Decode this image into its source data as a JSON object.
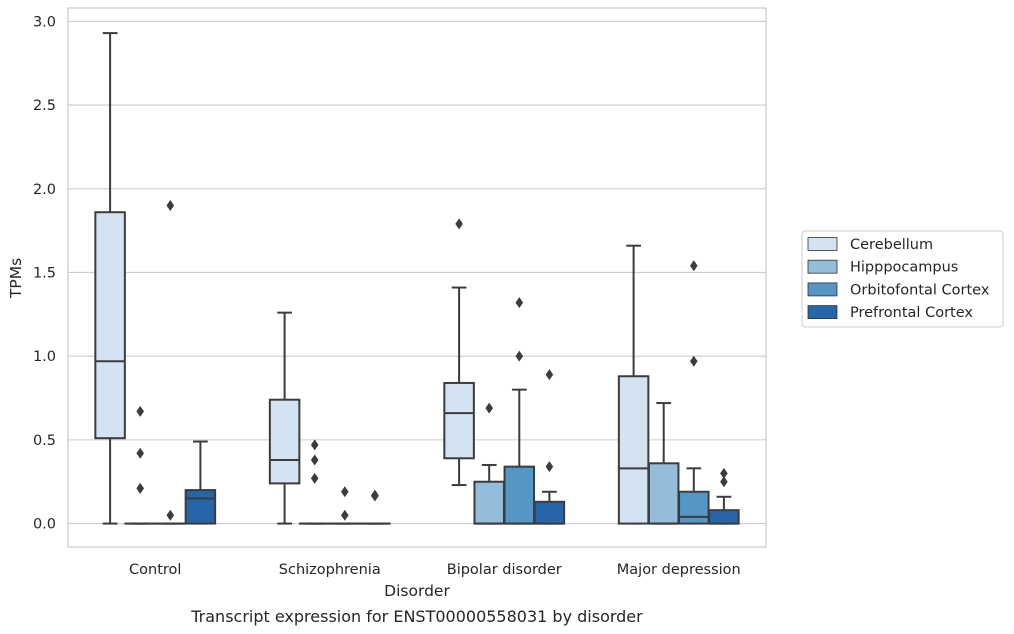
{
  "chart_data": {
    "type": "boxplot",
    "caption": "Transcript expression for ENST00000558031 by disorder",
    "xlabel": "Disorder",
    "ylabel": "TPMs",
    "ylim": [
      -0.14,
      3.08
    ],
    "yticks": [
      0.0,
      0.5,
      1.0,
      1.5,
      2.0,
      2.5,
      3.0
    ],
    "ytick_labels": [
      "0.0",
      "0.5",
      "1.0",
      "1.5",
      "2.0",
      "2.5",
      "3.0"
    ],
    "grid": "horizontal",
    "legend_position": "right",
    "categories": [
      "Control",
      "Schizophrenia",
      "Bipolar disorder",
      "Major depression"
    ],
    "series": [
      {
        "name": "Cerebellum",
        "color": "#d4e3f2",
        "boxes": [
          {
            "whislo": 0.0,
            "q1": 0.51,
            "med": 0.97,
            "q3": 1.86,
            "whishi": 2.93,
            "fliers": []
          },
          {
            "whislo": 0.0,
            "q1": 0.24,
            "med": 0.38,
            "q3": 0.74,
            "whishi": 1.26,
            "fliers": []
          },
          {
            "whislo": 0.23,
            "q1": 0.39,
            "med": 0.66,
            "q3": 0.84,
            "whishi": 1.41,
            "fliers": [
              1.79
            ]
          },
          {
            "whislo": 0.0,
            "q1": 0.0,
            "med": 0.33,
            "q3": 0.88,
            "whishi": 1.66,
            "fliers": []
          }
        ]
      },
      {
        "name": "Hipppocampus",
        "color": "#93bdd9",
        "boxes": [
          {
            "whislo": 0.0,
            "q1": 0.0,
            "med": 0.0,
            "q3": 0.0,
            "whishi": 0.0,
            "fliers": [
              0.67,
              0.42,
              0.21
            ]
          },
          {
            "whislo": 0.0,
            "q1": 0.0,
            "med": 0.0,
            "q3": 0.0,
            "whishi": 0.0,
            "fliers": [
              0.47,
              0.38,
              0.27
            ]
          },
          {
            "whislo": 0.0,
            "q1": 0.0,
            "med": 0.0,
            "q3": 0.25,
            "whishi": 0.35,
            "fliers": [
              0.69
            ]
          },
          {
            "whislo": 0.0,
            "q1": 0.0,
            "med": 0.0,
            "q3": 0.36,
            "whishi": 0.72,
            "fliers": []
          }
        ]
      },
      {
        "name": "Orbitofontal Cortex",
        "color": "#5496c5",
        "boxes": [
          {
            "whislo": 0.0,
            "q1": 0.0,
            "med": 0.0,
            "q3": 0.0,
            "whishi": 0.0,
            "fliers": [
              1.9,
              0.05
            ]
          },
          {
            "whislo": 0.0,
            "q1": 0.0,
            "med": 0.0,
            "q3": 0.0,
            "whishi": 0.0,
            "fliers": [
              0.19,
              0.05
            ]
          },
          {
            "whislo": 0.0,
            "q1": 0.0,
            "med": 0.0,
            "q3": 0.34,
            "whishi": 0.8,
            "fliers": [
              1.32,
              1.0
            ]
          },
          {
            "whislo": 0.0,
            "q1": 0.0,
            "med": 0.04,
            "q3": 0.19,
            "whishi": 0.33,
            "fliers": [
              1.54,
              0.97
            ]
          }
        ]
      },
      {
        "name": "Prefrontal Cortex",
        "color": "#2666a8",
        "boxes": [
          {
            "whislo": 0.0,
            "q1": 0.0,
            "med": 0.15,
            "q3": 0.2,
            "whishi": 0.49,
            "fliers": []
          },
          {
            "whislo": 0.0,
            "q1": 0.0,
            "med": 0.0,
            "q3": 0.0,
            "whishi": 0.0,
            "fliers": [
              0.17,
              0.165
            ]
          },
          {
            "whislo": 0.0,
            "q1": 0.0,
            "med": 0.0,
            "q3": 0.13,
            "whishi": 0.19,
            "fliers": [
              0.89,
              0.34
            ]
          },
          {
            "whislo": 0.0,
            "q1": 0.0,
            "med": 0.0,
            "q3": 0.08,
            "whishi": 0.16,
            "fliers": [
              0.3,
              0.25
            ]
          }
        ]
      }
    ]
  }
}
